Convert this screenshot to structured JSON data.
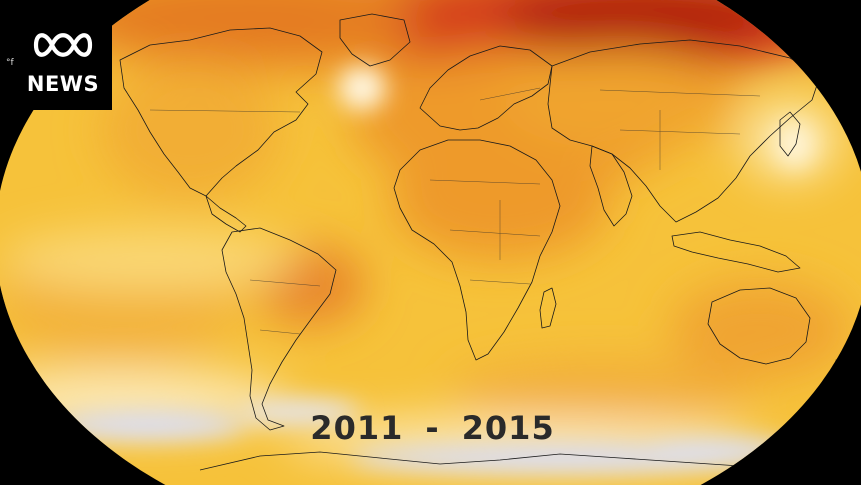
{
  "map": {
    "projection": "world-ellipse",
    "colors": {
      "background": "#000000",
      "base": "#F6C23A",
      "warm": "#EE9A2A",
      "hot": "#D6401A",
      "extreme": "#B11E10",
      "neutral": "#FFF7E2",
      "cool": "#D9DEF8",
      "coastline": "#1a1a1a"
    }
  },
  "logo": {
    "brand_text": "NEWS"
  },
  "legend": {
    "unit": "°f"
  },
  "period": {
    "start": "2011",
    "separator": "-",
    "end": "2015"
  }
}
